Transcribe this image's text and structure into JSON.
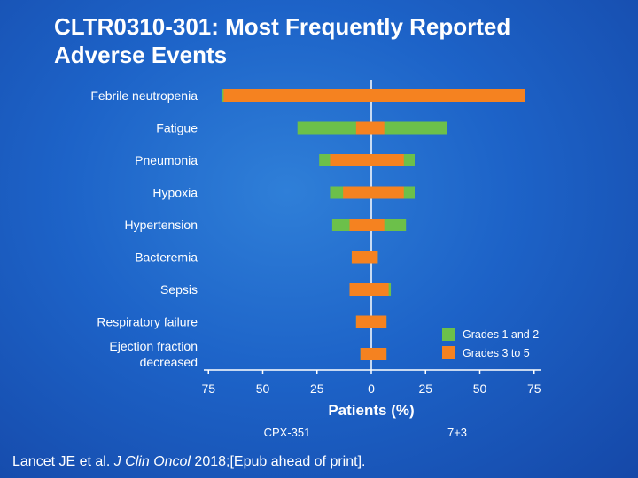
{
  "title_line1": "CLTR0310-301: Most Frequently Reported",
  "title_line2": "Adverse Events",
  "citation": {
    "authors": "Lancet JE et al. ",
    "journal": "J Clin Oncol",
    "rest": " 2018;[Epub ahead of print]."
  },
  "colors": {
    "grades_1_2": "#6cc04a",
    "grades_3_5": "#f58220",
    "axis": "#ffffff",
    "text": "#ffffff"
  },
  "chart_data": {
    "type": "bar",
    "orientation": "horizontal-diverging",
    "title": "CLTR0310-301: Most Frequently Reported Adverse Events",
    "xlabel": "Patients (%)",
    "xlim": [
      -75,
      75
    ],
    "xticks": [
      -75,
      -50,
      -25,
      0,
      25,
      50,
      75
    ],
    "xtick_labels": [
      "75",
      "50",
      "25",
      "0",
      "25",
      "50",
      "75"
    ],
    "left_group_label": "CPX-351",
    "right_group_label": "7+3",
    "legend_position": "bottom-right",
    "categories": [
      "Febrile neutropenia",
      "Fatigue",
      "Pneumonia",
      "Hypoxia",
      "Hypertension",
      "Bacteremia",
      "Sepsis",
      "Respiratory failure",
      "Ejection fraction decreased"
    ],
    "category_labels": [
      [
        "Febrile neutropenia"
      ],
      [
        "Fatigue"
      ],
      [
        "Pneumonia"
      ],
      [
        "Hypoxia"
      ],
      [
        "Hypertension"
      ],
      [
        "Bacteremia"
      ],
      [
        "Sepsis"
      ],
      [
        "Respiratory failure"
      ],
      [
        "Ejection fraction",
        "decreased"
      ]
    ],
    "series": [
      {
        "name": "Grades 1 and 2",
        "cpx351": [
          1,
          27,
          5,
          6,
          8,
          0,
          0,
          0,
          0
        ],
        "arm_7_3": [
          0,
          29,
          5,
          5,
          10,
          0,
          1,
          0,
          0
        ]
      },
      {
        "name": "Grades 3 to 5",
        "cpx351": [
          68,
          7,
          19,
          13,
          10,
          9,
          10,
          7,
          5
        ],
        "arm_7_3": [
          71,
          6,
          15,
          15,
          6,
          3,
          8,
          7,
          7
        ]
      }
    ]
  }
}
